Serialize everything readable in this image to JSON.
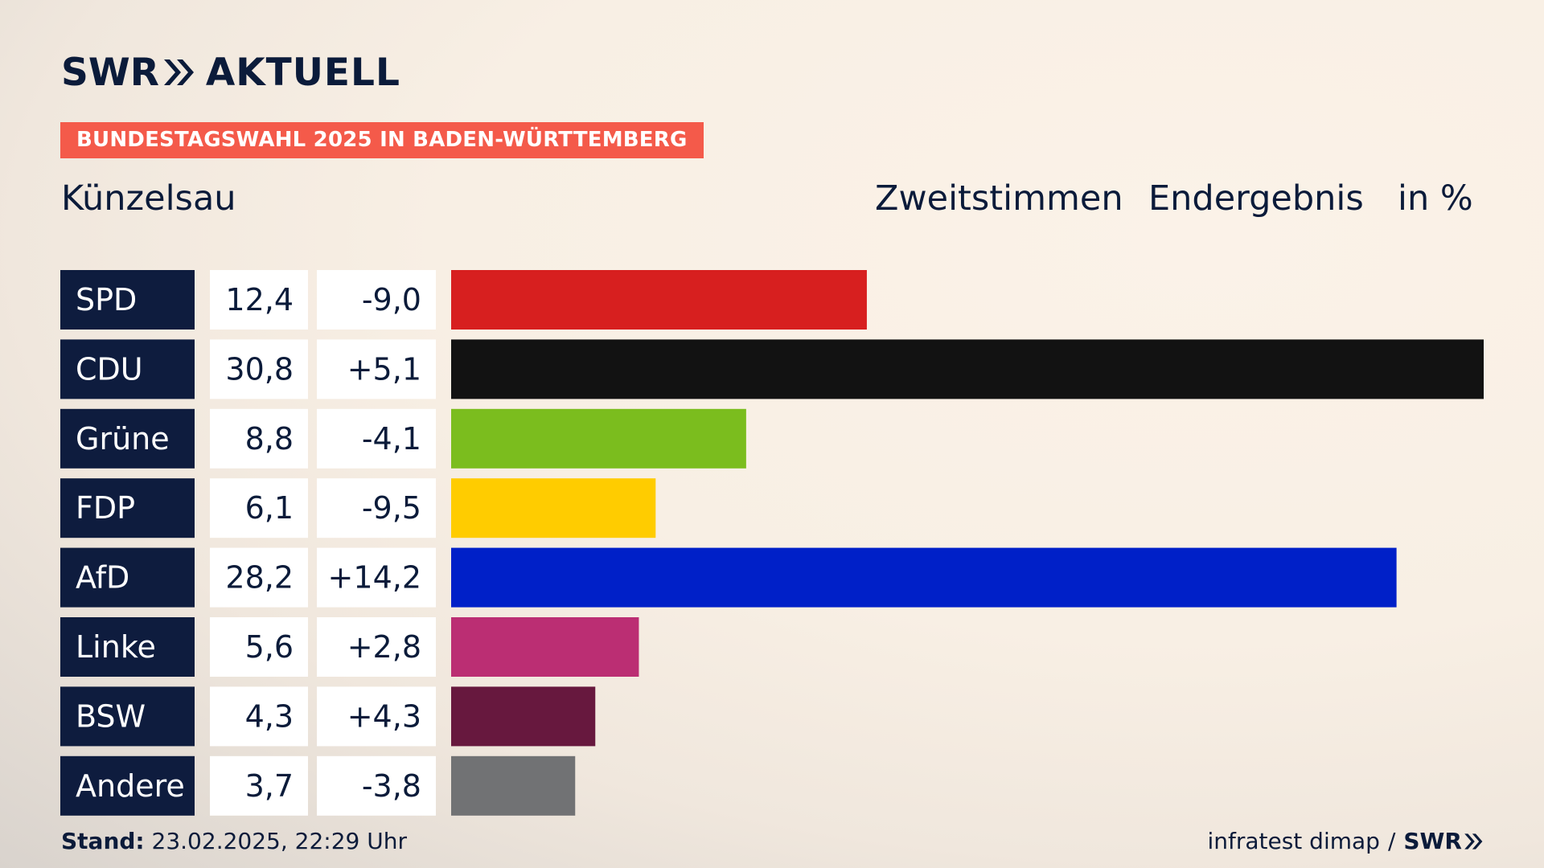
{
  "brand": {
    "swr": "SWR",
    "aktuell": "AKTUELL"
  },
  "badge": "BUNDESTAGSWAHL 2025 IN BADEN-WÜRTTEMBERG",
  "place": "Künzelsau",
  "header": {
    "vote_type": "Zweitstimmen",
    "status": "Endergebnis",
    "unit": "in %"
  },
  "footer": {
    "stand_label": "Stand:",
    "stand_value": "23.02.2025, 22:29 Uhr",
    "source": "infratest dimap",
    "separator": "/",
    "swr": "SWR"
  },
  "chart_data": {
    "type": "bar",
    "orientation": "horizontal",
    "categories": [
      "SPD",
      "CDU",
      "Grüne",
      "FDP",
      "AfD",
      "Linke",
      "BSW",
      "Andere"
    ],
    "values": [
      12.4,
      30.8,
      8.8,
      6.1,
      28.2,
      5.6,
      4.3,
      3.7
    ],
    "values_label": [
      "12,4",
      "30,8",
      "8,8",
      "6,1",
      "28,2",
      "5,6",
      "4,3",
      "3,7"
    ],
    "changes": [
      -9.0,
      5.1,
      -4.1,
      -9.5,
      14.2,
      2.8,
      4.3,
      -3.8
    ],
    "changes_label": [
      "-9,0",
      "+5,1",
      "-4,1",
      "-9,5",
      "+14,2",
      "+2,8",
      "+4,3",
      "-3,8"
    ],
    "colors": [
      "#d71f1f",
      "#121212",
      "#7bbd1e",
      "#ffcc00",
      "#0020c8",
      "#bb2e73",
      "#67183e",
      "#717274"
    ],
    "xlim": [
      0,
      30.8
    ],
    "grid": false,
    "legend": "none"
  }
}
